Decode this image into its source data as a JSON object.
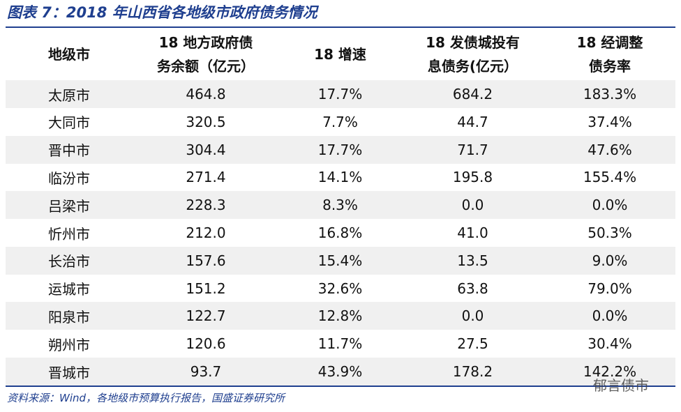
{
  "title": "图表 7：2018 年山西省各地级市政府债务情况",
  "table": {
    "headers": [
      [
        "地级市"
      ],
      [
        "18 地方政府债",
        "务余额（亿元）"
      ],
      [
        "18 增速"
      ],
      [
        "18 发债城投有",
        "息债务(亿元）"
      ],
      [
        "18 经调整",
        "债务率"
      ]
    ],
    "rows": [
      [
        "太原市",
        "464.8",
        "17.7%",
        "684.2",
        "183.3%"
      ],
      [
        "大同市",
        "320.5",
        "7.7%",
        "44.7",
        "37.4%"
      ],
      [
        "晋中市",
        "304.4",
        "17.7%",
        "71.7",
        "47.6%"
      ],
      [
        "临汾市",
        "271.4",
        "14.1%",
        "195.8",
        "155.4%"
      ],
      [
        "吕梁市",
        "228.3",
        "8.3%",
        "0.0",
        "0.0%"
      ],
      [
        "忻州市",
        "212.0",
        "16.8%",
        "41.0",
        "50.3%"
      ],
      [
        "长治市",
        "157.6",
        "15.4%",
        "13.5",
        "9.0%"
      ],
      [
        "运城市",
        "151.2",
        "32.6%",
        "63.8",
        "79.0%"
      ],
      [
        "阳泉市",
        "122.7",
        "12.8%",
        "0.0",
        "0.0%"
      ],
      [
        "朔州市",
        "120.6",
        "11.7%",
        "27.5",
        "30.4%"
      ],
      [
        "晋城市",
        "93.7",
        "43.9%",
        "178.2",
        "142.2%"
      ]
    ]
  },
  "source": "资料来源：Wind，各地级市预算执行报告，国盛证券研究所",
  "watermark": "郁言债市"
}
